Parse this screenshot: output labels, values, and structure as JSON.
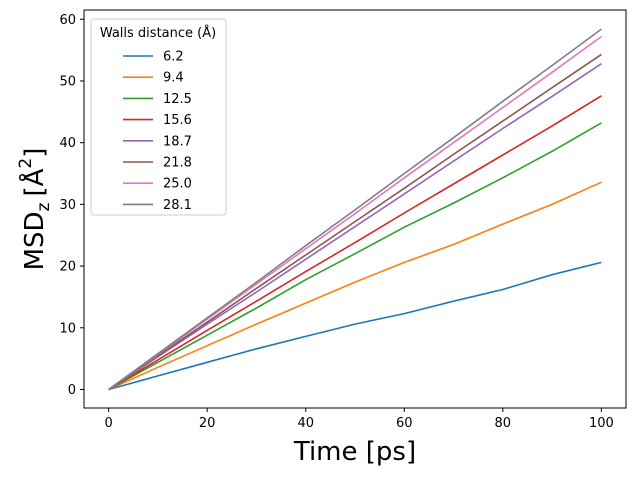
{
  "chart_data": {
    "type": "line",
    "xlabel": "Time [ps]",
    "ylabel_parts": {
      "base": "MSD",
      "sub": "z",
      "bracket_open": "[",
      "unit": "Å",
      "sup": "2",
      "bracket_close": "]"
    },
    "xlim": [
      -5,
      105
    ],
    "ylim": [
      -3,
      61.5
    ],
    "xticks": [
      0,
      20,
      40,
      60,
      80,
      100
    ],
    "yticks": [
      0,
      10,
      20,
      30,
      40,
      50,
      60
    ],
    "grid": false,
    "legend": {
      "title": "Walls distance (Å)",
      "placement": "top-left"
    },
    "x": [
      0,
      10,
      20,
      30,
      40,
      50,
      60,
      70,
      80,
      90,
      100
    ],
    "series": [
      {
        "name": "6.2",
        "color": "#1f77b4",
        "values": [
          0,
          2.2,
          4.4,
          6.6,
          8.6,
          10.6,
          12.3,
          14.3,
          16.2,
          18.6,
          20.6
        ]
      },
      {
        "name": "9.4",
        "color": "#ff7f0e",
        "values": [
          0,
          3.6,
          7.1,
          10.6,
          14.0,
          17.4,
          20.6,
          23.5,
          26.8,
          30.0,
          33.6
        ]
      },
      {
        "name": "12.5",
        "color": "#2ca02c",
        "values": [
          0,
          4.4,
          8.8,
          13.2,
          17.8,
          22.0,
          26.3,
          30.2,
          34.3,
          38.6,
          43.2
        ]
      },
      {
        "name": "15.6",
        "color": "#d62728",
        "values": [
          0,
          4.8,
          9.6,
          14.3,
          19.1,
          23.8,
          28.6,
          33.3,
          38.0,
          42.7,
          47.6
        ]
      },
      {
        "name": "18.7",
        "color": "#9467bd",
        "values": [
          0,
          5.3,
          10.6,
          15.8,
          21.1,
          26.4,
          31.7,
          37.0,
          42.3,
          47.5,
          52.8
        ]
      },
      {
        "name": "21.8",
        "color": "#8c564b",
        "values": [
          0,
          5.5,
          10.9,
          16.4,
          21.8,
          27.2,
          32.6,
          38.1,
          43.5,
          48.9,
          54.3
        ]
      },
      {
        "name": "25.0",
        "color": "#e377c2",
        "values": [
          0,
          5.7,
          11.4,
          17.1,
          22.8,
          28.5,
          34.3,
          40.0,
          45.7,
          51.4,
          57.2
        ]
      },
      {
        "name": "28.1",
        "color": "#7f7f7f",
        "values": [
          0,
          5.8,
          11.6,
          17.4,
          23.3,
          29.1,
          35.0,
          40.8,
          46.7,
          52.5,
          58.4
        ]
      }
    ]
  }
}
